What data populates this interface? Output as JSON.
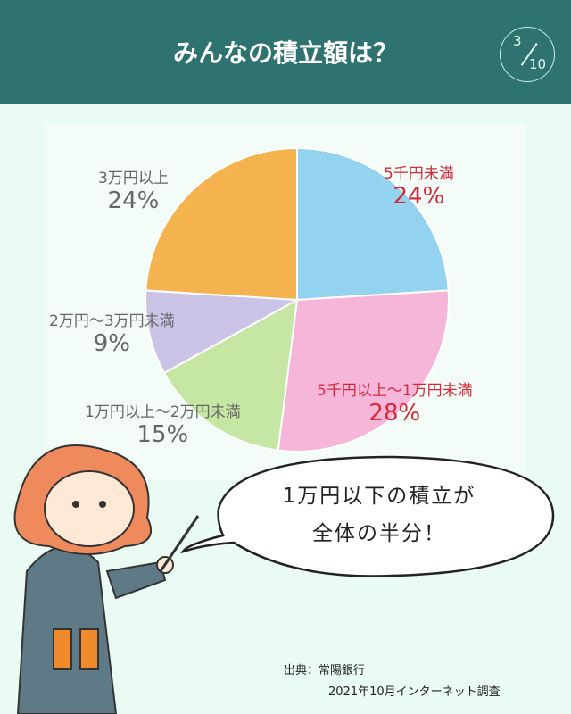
{
  "header": {
    "title": "みんなの積立額は？",
    "page_current": "3",
    "page_total": "10",
    "color": "#2e7370"
  },
  "chart_data": {
    "type": "pie",
    "start": "top",
    "direction": "clockwise",
    "categories": [
      "5千円未満",
      "5千円以上〜1万円未満",
      "1万円以上〜2万円未満",
      "2万円〜3万円未満",
      "3万円以上"
    ],
    "values": [
      24,
      28,
      15,
      9,
      24
    ],
    "labels": [
      "24%",
      "28%",
      "15%",
      "9%",
      "24%"
    ],
    "colors": [
      "#93d3f0",
      "#f6b6d9",
      "#c6e6a4",
      "#cbc4e6",
      "#f5b350"
    ]
  },
  "bubble": {
    "line1": "1万円以下の積立が",
    "line2": "全体の半分！"
  },
  "source": {
    "line1": "出典：常陽銀行",
    "line2": "2021年10月インターネット調査"
  }
}
